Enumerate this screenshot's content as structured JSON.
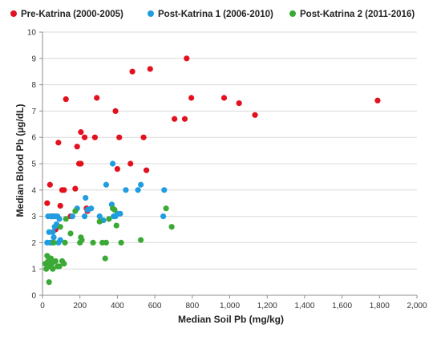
{
  "chart_data": {
    "type": "scatter",
    "xlabel": "Median Soil Pb (mg/kg)",
    "ylabel": "Median Blood Pb (µg/dL)",
    "xlim": [
      0,
      2000
    ],
    "ylim": [
      0,
      10
    ],
    "x_ticks": [
      0,
      200,
      400,
      600,
      800,
      1000,
      1200,
      1400,
      1600,
      1800,
      2000
    ],
    "x_tick_labels": [
      "0",
      "200",
      "400",
      "600",
      "800",
      "1,000",
      "1,200",
      "1,400",
      "1,600",
      "1,800",
      "2,000"
    ],
    "y_ticks": [
      0,
      1,
      2,
      3,
      4,
      5,
      6,
      7,
      8,
      9,
      10
    ],
    "y_tick_labels": [
      "0",
      "1",
      "2",
      "3",
      "4",
      "5",
      "6",
      "7",
      "8",
      "9",
      "10"
    ],
    "grid": "horizontal",
    "legend_position": "top",
    "series": [
      {
        "name": "Pre-Katrina (2000-2005)",
        "color": "#e3101e",
        "points": [
          [
            25,
            3.5
          ],
          [
            40,
            4.2
          ],
          [
            45,
            3.0
          ],
          [
            50,
            3.0
          ],
          [
            60,
            3.0
          ],
          [
            70,
            2.5
          ],
          [
            85,
            5.8
          ],
          [
            95,
            3.4
          ],
          [
            105,
            4.0
          ],
          [
            115,
            4.0
          ],
          [
            125,
            7.45
          ],
          [
            150,
            3.0
          ],
          [
            175,
            4.05
          ],
          [
            185,
            5.65
          ],
          [
            195,
            5.0
          ],
          [
            205,
            5.0
          ],
          [
            205,
            6.2
          ],
          [
            225,
            6.0
          ],
          [
            235,
            3.3
          ],
          [
            240,
            3.2
          ],
          [
            280,
            6.0
          ],
          [
            290,
            7.5
          ],
          [
            390,
            7.0
          ],
          [
            400,
            4.8
          ],
          [
            410,
            6.0
          ],
          [
            470,
            5.0
          ],
          [
            480,
            8.5
          ],
          [
            540,
            6.0
          ],
          [
            555,
            4.75
          ],
          [
            575,
            8.6
          ],
          [
            705,
            6.7
          ],
          [
            760,
            6.7
          ],
          [
            770,
            9.0
          ],
          [
            795,
            7.5
          ],
          [
            970,
            7.5
          ],
          [
            1050,
            7.3
          ],
          [
            1135,
            6.85
          ],
          [
            1790,
            7.4
          ]
        ]
      },
      {
        "name": "Post-Katrina 1 (2006-2010)",
        "color": "#1f9de0",
        "points": [
          [
            25,
            2.0
          ],
          [
            30,
            3.0
          ],
          [
            35,
            2.4
          ],
          [
            40,
            2.0
          ],
          [
            45,
            3.0
          ],
          [
            50,
            2.0
          ],
          [
            55,
            2.4
          ],
          [
            60,
            3.0
          ],
          [
            60,
            2.2
          ],
          [
            65,
            2.6
          ],
          [
            70,
            3.0
          ],
          [
            75,
            2.7
          ],
          [
            80,
            3.0
          ],
          [
            85,
            2.0
          ],
          [
            90,
            2.9
          ],
          [
            95,
            2.1
          ],
          [
            160,
            3.0
          ],
          [
            185,
            3.3
          ],
          [
            225,
            3.0
          ],
          [
            230,
            3.7
          ],
          [
            240,
            3.25
          ],
          [
            260,
            3.3
          ],
          [
            305,
            3.0
          ],
          [
            325,
            2.85
          ],
          [
            340,
            4.2
          ],
          [
            370,
            3.45
          ],
          [
            375,
            5.0
          ],
          [
            380,
            3.0
          ],
          [
            390,
            3.0
          ],
          [
            400,
            3.1
          ],
          [
            415,
            3.1
          ],
          [
            445,
            4.0
          ],
          [
            510,
            4.0
          ],
          [
            525,
            4.2
          ],
          [
            645,
            3.0
          ],
          [
            650,
            4.0
          ]
        ]
      },
      {
        "name": "Post-Katrina 2 (2011-2016)",
        "color": "#3aa935",
        "points": [
          [
            15,
            1.2
          ],
          [
            20,
            1.0
          ],
          [
            25,
            1.5
          ],
          [
            30,
            1.3
          ],
          [
            35,
            0.5
          ],
          [
            40,
            1.1
          ],
          [
            45,
            1.4
          ],
          [
            50,
            1.2
          ],
          [
            55,
            1.0
          ],
          [
            60,
            2.0
          ],
          [
            70,
            1.3
          ],
          [
            80,
            1.1
          ],
          [
            90,
            1.1
          ],
          [
            95,
            2.6
          ],
          [
            105,
            1.3
          ],
          [
            115,
            1.2
          ],
          [
            120,
            2.0
          ],
          [
            125,
            2.9
          ],
          [
            150,
            2.35
          ],
          [
            175,
            3.2
          ],
          [
            200,
            2.0
          ],
          [
            205,
            2.2
          ],
          [
            210,
            2.1
          ],
          [
            270,
            2.0
          ],
          [
            305,
            2.8
          ],
          [
            320,
            2.0
          ],
          [
            335,
            1.4
          ],
          [
            340,
            2.0
          ],
          [
            355,
            2.9
          ],
          [
            375,
            3.3
          ],
          [
            385,
            3.25
          ],
          [
            395,
            2.65
          ],
          [
            420,
            2.0
          ],
          [
            525,
            2.1
          ],
          [
            660,
            3.3
          ],
          [
            690,
            2.6
          ]
        ]
      }
    ]
  }
}
